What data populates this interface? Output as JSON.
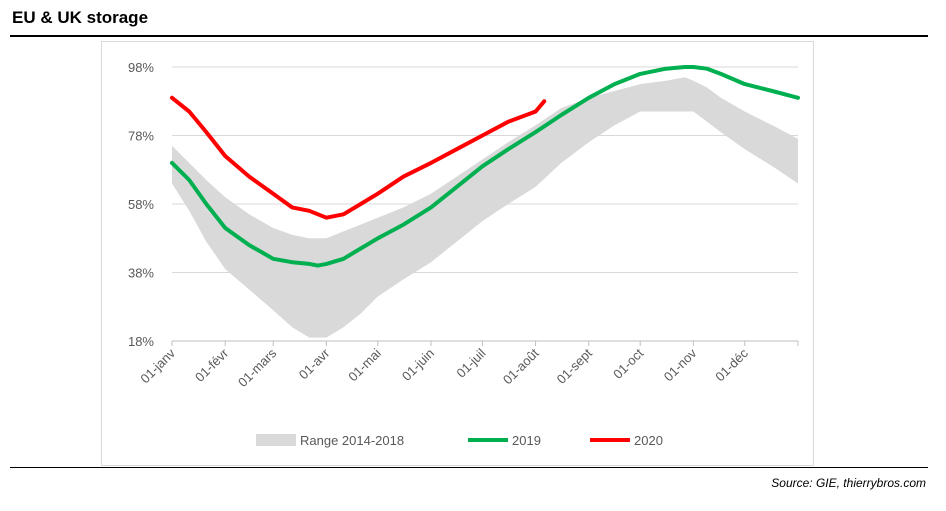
{
  "header": {
    "title": "EU & UK storage"
  },
  "footer": {
    "source": "Source: GIE, thierrybros.com"
  },
  "chart_data": {
    "type": "line",
    "title": "EU & UK storage",
    "xlabel": "",
    "ylabel": "",
    "x_domain": [
      0,
      365
    ],
    "ylim": [
      18,
      98
    ],
    "y_ticks": [
      18,
      38,
      58,
      78,
      98
    ],
    "y_tick_labels": [
      "18%",
      "38%",
      "58%",
      "78%",
      "98%"
    ],
    "x_ticks": [
      0,
      31,
      59,
      90,
      120,
      151,
      181,
      212,
      243,
      273,
      304,
      334
    ],
    "x_tick_labels": [
      "01-janv",
      "01-févr",
      "01-mars",
      "01-avr",
      "01-mai",
      "01-juin",
      "01-juil",
      "01-août",
      "01-sept",
      "01-oct",
      "01-nov",
      "01-déc"
    ],
    "grid": "horizontal",
    "legend": "bottom",
    "range": {
      "name": "Range 2014-2018",
      "color": "#d9d9d9",
      "x": [
        0,
        10,
        20,
        31,
        45,
        59,
        70,
        80,
        90,
        100,
        110,
        120,
        135,
        151,
        166,
        181,
        196,
        212,
        227,
        243,
        258,
        273,
        288,
        299,
        304,
        312,
        320,
        334,
        350,
        365
      ],
      "low": [
        64,
        56,
        47,
        39,
        33,
        27,
        22,
        19,
        19,
        22,
        26,
        31,
        36,
        41,
        47,
        53,
        58,
        63,
        70,
        76,
        81,
        85,
        85,
        85,
        85,
        82,
        79,
        74,
        69,
        64
      ],
      "high": [
        75,
        70,
        65,
        60,
        55,
        51,
        49,
        48,
        48,
        50,
        52,
        54,
        57,
        61,
        66,
        71,
        76,
        81,
        86,
        89,
        91,
        93,
        94,
        95,
        94,
        92,
        89,
        85,
        81,
        77
      ]
    },
    "series": [
      {
        "name": "2019",
        "color": "#00b050",
        "x": [
          0,
          10,
          20,
          31,
          45,
          59,
          70,
          80,
          85,
          90,
          100,
          110,
          120,
          135,
          151,
          166,
          181,
          196,
          212,
          227,
          243,
          258,
          273,
          288,
          299,
          304,
          312,
          320,
          334,
          350,
          365
        ],
        "values": [
          70,
          65,
          58,
          51,
          46,
          42,
          41,
          40.5,
          40,
          40.5,
          42,
          45,
          48,
          52,
          57,
          63,
          69,
          74,
          79,
          84,
          89,
          93,
          96,
          97.5,
          98,
          98,
          97.5,
          96,
          93,
          91,
          89
        ]
      },
      {
        "name": "2020",
        "color": "#ff0000",
        "x": [
          0,
          10,
          20,
          31,
          45,
          59,
          70,
          80,
          90,
          100,
          110,
          120,
          135,
          151,
          166,
          181,
          196,
          212,
          217
        ],
        "values": [
          89,
          85,
          79,
          72,
          66,
          61,
          57,
          56,
          54,
          55,
          58,
          61,
          66,
          70,
          74,
          78,
          82,
          85,
          88
        ]
      }
    ]
  }
}
